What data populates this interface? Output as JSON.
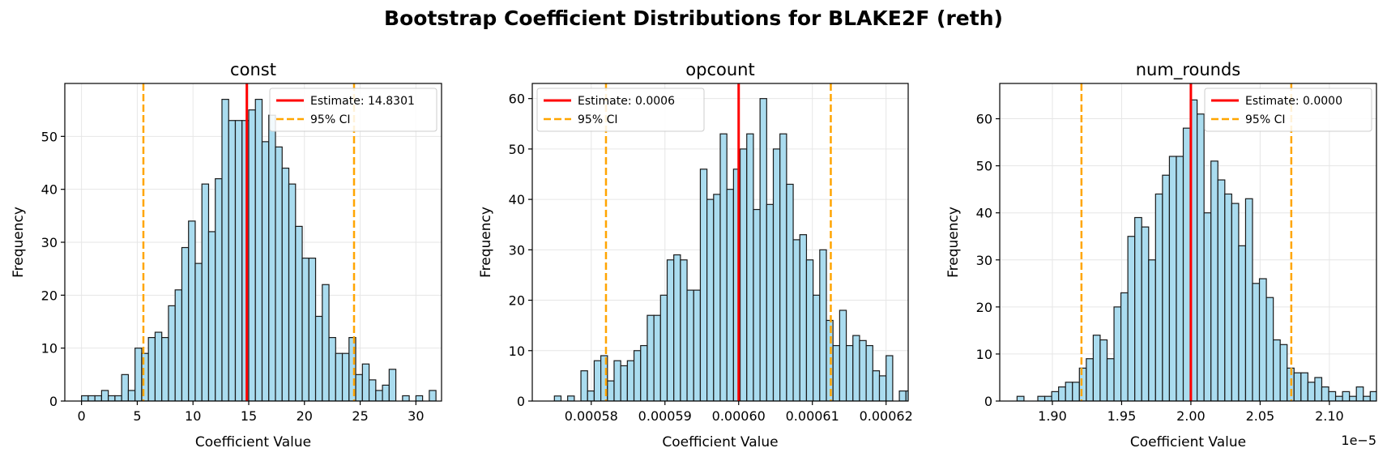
{
  "figure": {
    "title": "Bootstrap Coefficient Distributions for BLAKE2F (reth)"
  },
  "colors": {
    "bar_fill": "#aadcef",
    "bar_edge": "#1a1a1a",
    "estimate": "#ff0000",
    "ci": "#ffa500",
    "grid": "#e6e6e6"
  },
  "chart_data": [
    {
      "type": "bar",
      "title": "const",
      "xlabel": "Coefficient Value",
      "ylabel": "Frequency",
      "xlim": [
        -1.5,
        32.3
      ],
      "ylim": [
        0,
        60
      ],
      "xticks": [
        0,
        5,
        10,
        15,
        20,
        25,
        30
      ],
      "xtick_labels": [
        "0",
        "5",
        "10",
        "15",
        "20",
        "25",
        "30"
      ],
      "yticks": [
        0,
        10,
        20,
        30,
        40,
        50
      ],
      "ytick_labels": [
        "0",
        "10",
        "20",
        "30",
        "40",
        "50"
      ],
      "bin_start": 0.0,
      "bin_width": 0.6,
      "counts": [
        1,
        1,
        1,
        2,
        1,
        1,
        5,
        2,
        10,
        9,
        12,
        13,
        12,
        18,
        21,
        29,
        34,
        26,
        41,
        32,
        42,
        57,
        53,
        53,
        53,
        55,
        57,
        49,
        54,
        48,
        44,
        41,
        33,
        27,
        27,
        16,
        22,
        12,
        9,
        9,
        12,
        5,
        7,
        4,
        2,
        3,
        6,
        0,
        1,
        0,
        1,
        0,
        2
      ],
      "estimate": 14.8301,
      "ci": [
        5.55,
        24.45
      ],
      "legend": {
        "placement": "upper right",
        "entries": [
          "Estimate: 14.8301",
          "95% CI"
        ]
      },
      "offset_label": ""
    },
    {
      "type": "bar",
      "title": "opcount",
      "xlabel": "Coefficient Value",
      "ylabel": "Frequency",
      "xlim": [
        0.000572,
        0.000623
      ],
      "ylim": [
        0,
        63
      ],
      "xticks": [
        0.00058,
        0.00059,
        0.0006,
        0.00061,
        0.00062
      ],
      "xtick_labels": [
        "0.00058",
        "0.00059",
        "0.00060",
        "0.00061",
        "0.00062"
      ],
      "yticks": [
        0,
        10,
        20,
        30,
        40,
        50,
        60
      ],
      "ytick_labels": [
        "0",
        "10",
        "20",
        "30",
        "40",
        "50",
        "60"
      ],
      "bin_start": 0.000575,
      "bin_width": 9e-07,
      "counts": [
        1,
        0,
        1,
        0,
        6,
        2,
        8,
        9,
        4,
        8,
        7,
        8,
        10,
        11,
        17,
        17,
        21,
        28,
        29,
        28,
        22,
        22,
        46,
        40,
        41,
        53,
        42,
        46,
        50,
        53,
        38,
        60,
        39,
        50,
        53,
        43,
        32,
        33,
        28,
        21,
        30,
        16,
        11,
        18,
        11,
        13,
        12,
        11,
        6,
        5,
        9,
        0,
        2,
        2,
        0,
        0,
        2
      ],
      "estimate": 0.0006,
      "ci": [
        0.000582,
        0.0006125
      ],
      "legend": {
        "placement": "upper left",
        "entries": [
          "Estimate: 0.0006",
          "95% CI"
        ]
      },
      "offset_label": ""
    },
    {
      "type": "bar",
      "title": "num_rounds",
      "xlabel": "Coefficient Value",
      "ylabel": "Frequency",
      "xlim": [
        1.862,
        2.134
      ],
      "ylim": [
        0,
        67.5
      ],
      "xticks": [
        1.9,
        1.95,
        2.0,
        2.05,
        2.1
      ],
      "xtick_labels": [
        "1.90",
        "1.95",
        "2.00",
        "2.05",
        "2.10"
      ],
      "yticks": [
        0,
        10,
        20,
        30,
        40,
        50,
        60
      ],
      "ytick_labels": [
        "0",
        "10",
        "20",
        "30",
        "40",
        "50",
        "60"
      ],
      "bin_start": 1.8745,
      "bin_width": 0.005,
      "counts": [
        1,
        0,
        0,
        1,
        1,
        2,
        3,
        4,
        4,
        7,
        9,
        14,
        13,
        9,
        20,
        23,
        35,
        39,
        37,
        30,
        44,
        48,
        52,
        52,
        58,
        64,
        61,
        40,
        51,
        47,
        44,
        42,
        33,
        43,
        25,
        26,
        22,
        13,
        12,
        7,
        6,
        6,
        4,
        5,
        3,
        2,
        1,
        2,
        1,
        3,
        1,
        2
      ],
      "estimate": 2.0,
      "ci": [
        1.921,
        2.0725
      ],
      "legend": {
        "placement": "upper right",
        "entries": [
          "Estimate: 0.0000",
          "95% CI"
        ]
      },
      "offset_label": "1e−5"
    }
  ]
}
